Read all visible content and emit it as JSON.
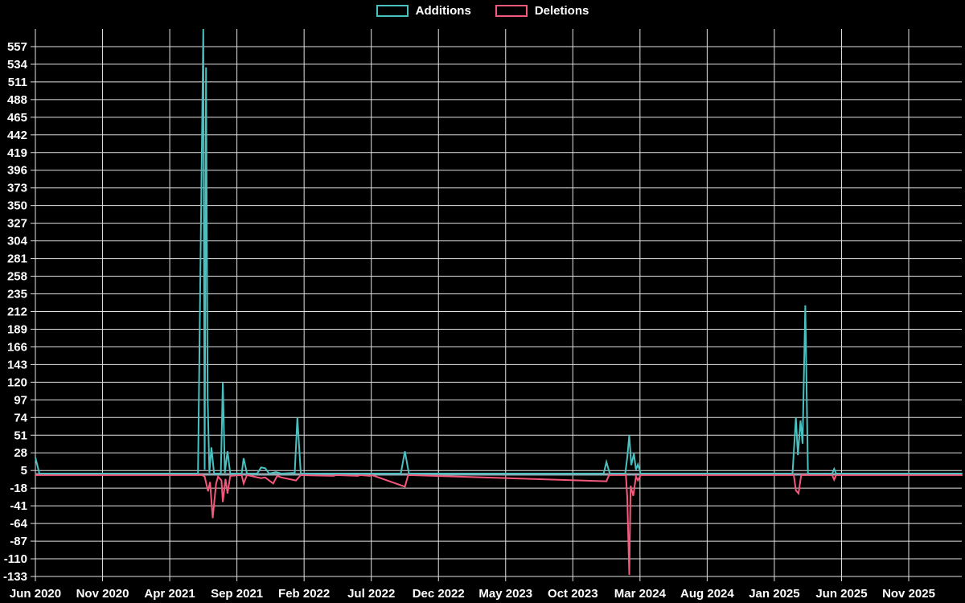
{
  "chart_data": {
    "type": "line",
    "title": "",
    "legend_position": "top-center",
    "grid": true,
    "background_color": "#000000",
    "grid_color": "#e2e2e2",
    "text_color": "#ffffff",
    "zero_line_color": "#93a8b0",
    "y_axis": {
      "min": -133,
      "max": 580,
      "tick_step": 23,
      "tick_labels": [
        557,
        534,
        511,
        488,
        465,
        442,
        419,
        396,
        373,
        350,
        327,
        304,
        281,
        258,
        235,
        212,
        189,
        166,
        143,
        120,
        97,
        74,
        51,
        28,
        5,
        -18,
        -41,
        -64,
        -87,
        -110,
        -133
      ]
    },
    "x_axis": {
      "unit": "months since Jun 2020",
      "min": 0,
      "max": 69,
      "tick_months": [
        0,
        5,
        10,
        15,
        20,
        25,
        30,
        35,
        40,
        45,
        50,
        55,
        60,
        65
      ],
      "tick_labels": [
        "Jun 2020",
        "Nov 2020",
        "Apr 2021",
        "Sep 2021",
        "Feb 2022",
        "Jul 2022",
        "Dec 2022",
        "May 2023",
        "Oct 2023",
        "Mar 2024",
        "Aug 2024",
        "Jan 2025",
        "Jun 2025",
        "Nov 2025"
      ]
    },
    "series": [
      {
        "name": "Additions",
        "color": "#4BC0C0",
        "points": [
          [
            0,
            22
          ],
          [
            0.3,
            1
          ],
          [
            12.1,
            1
          ],
          [
            12.5,
            580
          ],
          [
            12.6,
            6
          ],
          [
            12.7,
            530
          ],
          [
            12.82,
            100
          ],
          [
            12.95,
            2
          ],
          [
            13.1,
            35
          ],
          [
            13.3,
            1
          ],
          [
            13.8,
            1
          ],
          [
            13.95,
            120
          ],
          [
            14.1,
            2
          ],
          [
            14.3,
            30
          ],
          [
            14.5,
            1
          ],
          [
            15.35,
            1
          ],
          [
            15.5,
            21
          ],
          [
            15.75,
            1
          ],
          [
            16.5,
            1
          ],
          [
            16.8,
            9
          ],
          [
            17.1,
            8
          ],
          [
            17.4,
            1
          ],
          [
            17.9,
            3
          ],
          [
            18.3,
            1
          ],
          [
            19.3,
            2
          ],
          [
            19.5,
            74
          ],
          [
            19.75,
            1
          ],
          [
            27.2,
            1
          ],
          [
            27.5,
            30
          ],
          [
            27.8,
            1
          ],
          [
            42.3,
            1
          ],
          [
            42.5,
            16
          ],
          [
            42.75,
            1
          ],
          [
            43.9,
            1
          ],
          [
            44.05,
            22
          ],
          [
            44.2,
            51
          ],
          [
            44.35,
            12
          ],
          [
            44.55,
            27
          ],
          [
            44.7,
            6
          ],
          [
            44.85,
            13
          ],
          [
            45.05,
            1
          ],
          [
            56.35,
            1
          ],
          [
            56.6,
            74
          ],
          [
            56.75,
            25
          ],
          [
            56.95,
            70
          ],
          [
            57.1,
            40
          ],
          [
            57.3,
            220
          ],
          [
            57.5,
            1
          ],
          [
            59.3,
            1
          ],
          [
            59.45,
            7
          ],
          [
            59.6,
            1
          ],
          [
            69,
            1
          ]
        ]
      },
      {
        "name": "Deletions",
        "color": "#F4587B",
        "points": [
          [
            0,
            -1
          ],
          [
            12.4,
            -1
          ],
          [
            12.6,
            -3
          ],
          [
            12.85,
            -22
          ],
          [
            13.0,
            -10
          ],
          [
            13.2,
            -57
          ],
          [
            13.45,
            -12
          ],
          [
            13.6,
            -3
          ],
          [
            13.85,
            -8
          ],
          [
            13.95,
            -36
          ],
          [
            14.15,
            -6
          ],
          [
            14.3,
            -25
          ],
          [
            14.5,
            -2
          ],
          [
            15.35,
            -1
          ],
          [
            15.5,
            -12
          ],
          [
            15.75,
            -1
          ],
          [
            16.8,
            -5
          ],
          [
            17.1,
            -4
          ],
          [
            17.7,
            -12
          ],
          [
            18.0,
            -2
          ],
          [
            18.3,
            -4
          ],
          [
            19.4,
            -8
          ],
          [
            19.55,
            -5
          ],
          [
            19.75,
            -1
          ],
          [
            22.2,
            -2
          ],
          [
            22.35,
            -1
          ],
          [
            24.0,
            -2
          ],
          [
            24.15,
            -1
          ],
          [
            24.9,
            -2
          ],
          [
            25.05,
            -1
          ],
          [
            27.5,
            -16
          ],
          [
            27.75,
            -1
          ],
          [
            42.5,
            -9
          ],
          [
            42.7,
            -1
          ],
          [
            43.95,
            -1
          ],
          [
            44.05,
            -30
          ],
          [
            44.2,
            -131
          ],
          [
            44.3,
            -15
          ],
          [
            44.5,
            -28
          ],
          [
            44.7,
            -3
          ],
          [
            44.85,
            -8
          ],
          [
            45.05,
            -1
          ],
          [
            56.45,
            -1
          ],
          [
            56.6,
            -21
          ],
          [
            56.8,
            -25
          ],
          [
            57.0,
            -1
          ],
          [
            59.3,
            -1
          ],
          [
            59.45,
            -7
          ],
          [
            59.6,
            -1
          ],
          [
            69,
            -1
          ]
        ]
      }
    ]
  }
}
